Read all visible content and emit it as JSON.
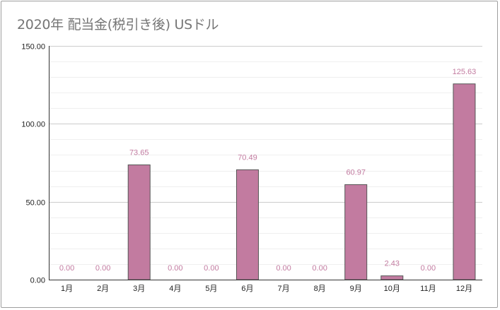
{
  "chart_data": {
    "type": "bar",
    "title": "2020年 配当金(税引き後) USドル",
    "categories": [
      "1月",
      "2月",
      "3月",
      "4月",
      "5月",
      "6月",
      "7月",
      "8月",
      "9月",
      "10月",
      "11月",
      "12月"
    ],
    "values": [
      0.0,
      0.0,
      73.65,
      0.0,
      0.0,
      70.49,
      0.0,
      0.0,
      60.97,
      2.43,
      0.0,
      125.63
    ],
    "data_labels": [
      "0.00",
      "0.00",
      "73.65",
      "0.00",
      "0.00",
      "70.49",
      "0.00",
      "0.00",
      "60.97",
      "2.43",
      "0.00",
      "125.63"
    ],
    "y_ticks": [
      "0.00",
      "50.00",
      "100.00",
      "150.00"
    ],
    "ylim": [
      0,
      150
    ],
    "grid": true,
    "minor_grid_step": 10,
    "xlabel": "",
    "ylabel": "",
    "bar_color": "#c27ba0",
    "label_color": "#c27ba0"
  }
}
